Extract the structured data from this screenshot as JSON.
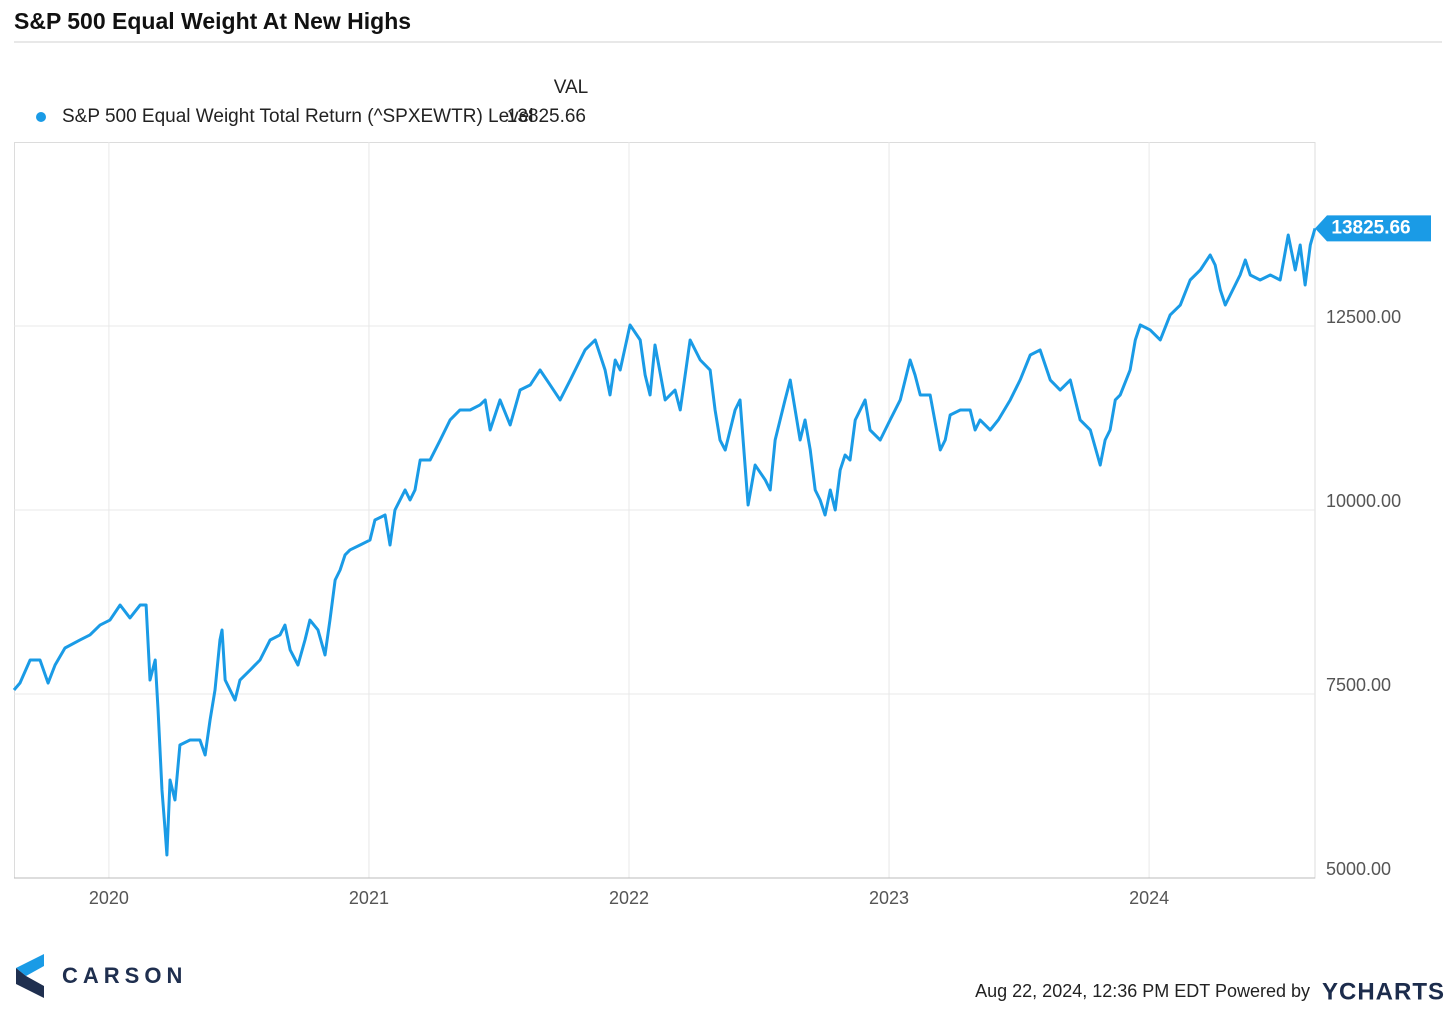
{
  "chart_data": {
    "type": "line",
    "title": "S&P 500 Equal Weight At New Highs",
    "legend_header": "VAL",
    "x": [
      2019.635,
      2019.658,
      2019.697,
      2019.735,
      2019.766,
      2019.793,
      2019.831,
      2019.889,
      2019.927,
      2019.966,
      2020.004,
      2020.043,
      2020.081,
      2020.12,
      2020.143,
      2020.158,
      2020.178,
      2020.189,
      2020.204,
      2020.216,
      2020.223,
      2020.235,
      2020.254,
      2020.273,
      2020.312,
      2020.35,
      2020.37,
      2020.389,
      2020.408,
      2020.427,
      2020.435,
      2020.447,
      2020.466,
      2020.485,
      2020.504,
      2020.543,
      2020.581,
      2020.62,
      2020.658,
      2020.677,
      2020.697,
      2020.727,
      2020.754,
      2020.773,
      2020.804,
      2020.831,
      2020.85,
      2020.87,
      2020.889,
      2020.908,
      2020.927,
      2020.966,
      2021.004,
      2021.023,
      2021.062,
      2021.081,
      2021.1,
      2021.139,
      2021.158,
      2021.177,
      2021.197,
      2021.235,
      2021.274,
      2021.312,
      2021.35,
      2021.389,
      2021.427,
      2021.447,
      2021.466,
      2021.504,
      2021.543,
      2021.581,
      2021.62,
      2021.658,
      2021.697,
      2021.735,
      2021.774,
      2021.831,
      2021.87,
      2021.908,
      2021.927,
      2021.947,
      2021.966,
      2022.004,
      2022.043,
      2022.062,
      2022.081,
      2022.1,
      2022.139,
      2022.177,
      2022.197,
      2022.235,
      2022.274,
      2022.312,
      2022.331,
      2022.35,
      2022.37,
      2022.408,
      2022.427,
      2022.458,
      2022.485,
      2022.524,
      2022.543,
      2022.562,
      2022.581,
      2022.6,
      2022.62,
      2022.639,
      2022.658,
      2022.677,
      2022.697,
      2022.716,
      2022.735,
      2022.754,
      2022.774,
      2022.793,
      2022.812,
      2022.831,
      2022.85,
      2022.87,
      2022.908,
      2022.927,
      2022.966,
      2023.004,
      2023.043,
      2023.081,
      2023.1,
      2023.12,
      2023.158,
      2023.197,
      2023.216,
      2023.235,
      2023.274,
      2023.312,
      2023.331,
      2023.35,
      2023.389,
      2023.42,
      2023.466,
      2023.504,
      2023.543,
      2023.581,
      2023.62,
      2023.658,
      2023.697,
      2023.735,
      2023.774,
      2023.812,
      2023.831,
      2023.85,
      2023.87,
      2023.889,
      2023.927,
      2023.947,
      2023.966,
      2024.004,
      2024.043,
      2024.081,
      2024.12,
      2024.158,
      2024.197,
      2024.235,
      2024.254,
      2024.274,
      2024.293,
      2024.312,
      2024.35,
      2024.37,
      2024.389,
      2024.427,
      2024.466,
      2024.504,
      2024.535,
      2024.562,
      2024.581,
      2024.6,
      2024.62,
      2024.638
    ],
    "series": [
      {
        "name": "S&P 500 Equal Weight Total Return (^SPXEWTR) Level",
        "color": "#1a9be6",
        "values": [
          7554,
          7649,
          7962,
          7962,
          7649,
          7894,
          8125,
          8234,
          8302,
          8437,
          8505,
          8709,
          8533,
          8709,
          8709,
          7690,
          7962,
          7283,
          6196,
          5652,
          5313,
          6332,
          6060,
          6807,
          6875,
          6875,
          6671,
          7147,
          7554,
          8234,
          8370,
          7690,
          7554,
          7418,
          7690,
          7826,
          7962,
          8234,
          8302,
          8437,
          8098,
          7894,
          8234,
          8505,
          8370,
          8030,
          8505,
          9049,
          9185,
          9389,
          9457,
          9524,
          9592,
          9864,
          9932,
          9524,
          10000,
          10272,
          10136,
          10272,
          10679,
          10679,
          10951,
          11223,
          11359,
          11359,
          11427,
          11495,
          11087,
          11495,
          11155,
          11630,
          11698,
          11902,
          11698,
          11495,
          11766,
          12174,
          12310,
          11902,
          11563,
          12038,
          11902,
          12514,
          12310,
          11834,
          11563,
          12242,
          11495,
          11630,
          11359,
          12310,
          12038,
          11902,
          11359,
          10951,
          10815,
          11359,
          11495,
          10068,
          10611,
          10408,
          10272,
          10951,
          11223,
          11495,
          11766,
          11359,
          10951,
          11223,
          10815,
          10272,
          10136,
          9932,
          10272,
          10000,
          10543,
          10747,
          10679,
          11223,
          11495,
          11087,
          10951,
          11223,
          11495,
          12038,
          11834,
          11563,
          11563,
          10815,
          10951,
          11291,
          11359,
          11359,
          11087,
          11223,
          11087,
          11223,
          11495,
          11766,
          12106,
          12174,
          11766,
          11630,
          11766,
          11223,
          11087,
          10611,
          10951,
          11087,
          11495,
          11563,
          11902,
          12310,
          12514,
          12446,
          12310,
          12650,
          12785,
          13125,
          13261,
          13465,
          13329,
          12989,
          12785,
          12921,
          13193,
          13397,
          13193,
          13125,
          13193,
          13125,
          13736,
          13261,
          13601,
          13057,
          13601,
          13825.66
        ]
      }
    ],
    "xlim": [
      2019.635,
      2024.638
    ],
    "xticks": [
      2020,
      2021,
      2022,
      2023,
      2024
    ],
    "ylim": [
      5000,
      15000
    ],
    "yticks": [
      {
        "value": 5000,
        "label": "5000.00"
      },
      {
        "value": 7500,
        "label": "7500.00"
      },
      {
        "value": 10000,
        "label": "10000.00"
      },
      {
        "value": 12500,
        "label": "12500.00"
      }
    ],
    "grid": true
  },
  "footer": {
    "brand": "CARSON",
    "timestamp": "Aug 22, 2024, 12:36 PM EDT Powered by",
    "provider": "YCHARTS"
  }
}
